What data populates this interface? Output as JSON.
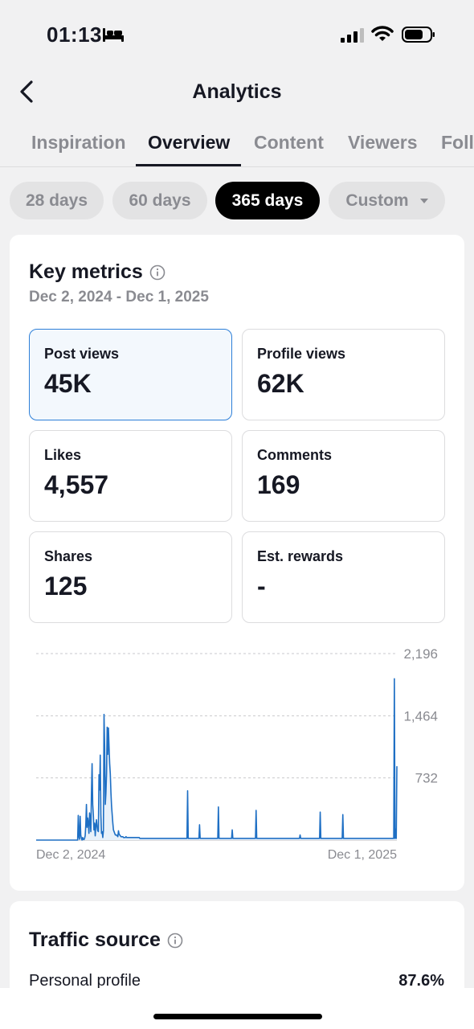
{
  "status_bar": {
    "time": "01:13",
    "icons": [
      "bed-icon",
      "signal-icon",
      "wifi-icon",
      "battery-icon"
    ]
  },
  "header": {
    "title": "Analytics",
    "back_icon": "chevron-left-icon"
  },
  "tabs": [
    {
      "label": "Inspiration",
      "active": false
    },
    {
      "label": "Overview",
      "active": true
    },
    {
      "label": "Content",
      "active": false
    },
    {
      "label": "Viewers",
      "active": false
    },
    {
      "label": "Foll",
      "active": false
    }
  ],
  "periods": [
    {
      "label": "28 days",
      "active": false
    },
    {
      "label": "60 days",
      "active": false
    },
    {
      "label": "365 days",
      "active": true
    },
    {
      "label": "Custom",
      "active": false,
      "dropdown": true
    }
  ],
  "key_metrics": {
    "title": "Key metrics",
    "date_range": "Dec 2, 2024 - Dec 1, 2025",
    "metrics": [
      {
        "label": "Post views",
        "value": "45K",
        "selected": true
      },
      {
        "label": "Profile views",
        "value": "62K",
        "selected": false
      },
      {
        "label": "Likes",
        "value": "4,557",
        "selected": false
      },
      {
        "label": "Comments",
        "value": "169",
        "selected": false
      },
      {
        "label": "Shares",
        "value": "125",
        "selected": false
      },
      {
        "label": "Est. rewards",
        "value": "-",
        "selected": false
      }
    ]
  },
  "chart_data": {
    "type": "area",
    "series": [
      {
        "values": [
          0,
          0,
          0,
          0,
          0,
          0,
          0,
          0,
          0,
          0,
          0,
          0,
          0,
          0,
          0,
          0,
          0,
          0,
          0,
          0,
          0,
          0,
          0,
          0,
          0,
          0,
          0,
          0,
          0,
          0,
          0,
          0,
          0,
          0,
          0,
          0,
          0,
          0,
          0,
          0,
          0,
          0,
          0,
          0,
          0,
          0,
          0,
          0,
          0,
          0,
          0,
          0,
          0,
          0,
          0,
          0,
          0,
          0,
          0,
          0,
          0,
          0,
          0,
          0,
          0,
          0,
          0,
          290,
          40,
          10,
          280,
          60,
          20,
          0,
          30,
          10,
          5,
          20,
          50,
          180,
          420,
          150,
          260,
          200,
          80,
          320,
          250,
          100,
          560,
          900,
          420,
          300,
          120,
          200,
          50,
          170,
          240,
          160,
          110,
          100,
          770,
          590,
          1000,
          300,
          80,
          100,
          30,
          110,
          1480,
          1100,
          420,
          550,
          780,
          1330,
          1010,
          1320,
          1100,
          900,
          780,
          560,
          400,
          300,
          200,
          120,
          100,
          80,
          60,
          60,
          60,
          50,
          40,
          110,
          70,
          60,
          50,
          40,
          40,
          40,
          40,
          30,
          30,
          30,
          30,
          40,
          30,
          30,
          30,
          30,
          30,
          30,
          30,
          30,
          30,
          30,
          30,
          30,
          30,
          30,
          30,
          30,
          30,
          30,
          30,
          30,
          30,
          20,
          20,
          20,
          20,
          20,
          20,
          20,
          20,
          20,
          20,
          20,
          20,
          20,
          20,
          20,
          20,
          20,
          20,
          20,
          20,
          20,
          20,
          20,
          20,
          20,
          20,
          20,
          20,
          20,
          20,
          20,
          20,
          20,
          20,
          20,
          20,
          20,
          20,
          20,
          20,
          20,
          20,
          20,
          20,
          20,
          20,
          20,
          20,
          20,
          20,
          20,
          20,
          20,
          20,
          20,
          20,
          20,
          20,
          20,
          20,
          20,
          20,
          20,
          20,
          20,
          20,
          20,
          20,
          20,
          20,
          20,
          20,
          20,
          20,
          20,
          20,
          20,
          20,
          20,
          20,
          20,
          20,
          20,
          20,
          20,
          20,
          20,
          20,
          20,
          20,
          20,
          20,
          20,
          20,
          20,
          20,
          20,
          20,
          20,
          20,
          20,
          20,
          20,
          20,
          20,
          20,
          20,
          20,
          20,
          20,
          20,
          20,
          20,
          20,
          20,
          20,
          20,
          20,
          20,
          20,
          20,
          20,
          20,
          20,
          20,
          20,
          20,
          20,
          20,
          20,
          20,
          20,
          20,
          20,
          20,
          20,
          20,
          20,
          20,
          20,
          20,
          20,
          20,
          20,
          20,
          20,
          20,
          20,
          20,
          20,
          20,
          20,
          20,
          20,
          20,
          20,
          20,
          20,
          20,
          20,
          20,
          20,
          20,
          20,
          20,
          20,
          20,
          20,
          20,
          20,
          20,
          20,
          20,
          20,
          20,
          20,
          20,
          20,
          20,
          20,
          20,
          20,
          20,
          20,
          20,
          20,
          20,
          20,
          20,
          20,
          20,
          20,
          20,
          20,
          20,
          20,
          20,
          20,
          20,
          20,
          20,
          20,
          20,
          20,
          20,
          20,
          20,
          20,
          20,
          20,
          20,
          20,
          20,
          20,
          20,
          20,
          20,
          20,
          20,
          20,
          20,
          20,
          20,
          20,
          20,
          20,
          20,
          20,
          20,
          20,
          20
        ]
      }
    ],
    "spikes": [
      {
        "day": 241,
        "value": 580
      },
      {
        "day": 260,
        "value": 180
      },
      {
        "day": 290,
        "value": 390
      },
      {
        "day": 312,
        "value": 120
      },
      {
        "day": 350,
        "value": 350
      },
      {
        "day": 420,
        "value": 60
      },
      {
        "day": 452,
        "value": 330
      },
      {
        "day": 488,
        "value": 300
      },
      {
        "day": 570,
        "value": 1900
      },
      {
        "day": 572,
        "value": 130
      },
      {
        "day": 574,
        "value": 870
      }
    ],
    "total_days": 575,
    "x_tick_labels": [
      "Dec 2, 2024",
      "Dec 1, 2025"
    ],
    "y_tick_labels": [
      "2,196",
      "1,464",
      "732"
    ],
    "y_ticks": [
      2196,
      1464,
      732
    ],
    "ylim": [
      0,
      2196
    ],
    "grid": true,
    "line_color": "#1e6fc4",
    "fill_color": "#e8f1fa"
  },
  "traffic_source": {
    "title": "Traffic source",
    "rows": [
      {
        "label": "Personal profile",
        "value": "87.6%"
      }
    ]
  }
}
